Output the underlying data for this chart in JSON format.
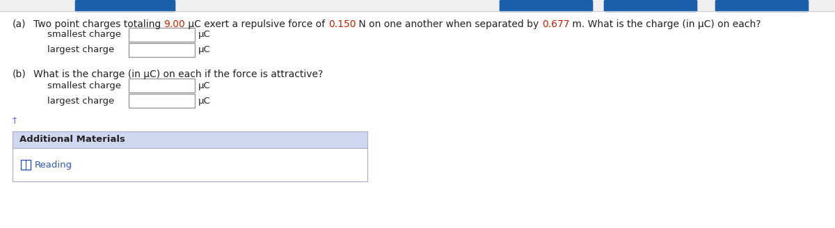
{
  "bg_color": "#ffffff",
  "top_bar_bg": "#f0f0f0",
  "top_btn_color": "#1a5faa",
  "part_a_label": "(a)",
  "part_a_text_parts": [
    {
      "text": "Two point charges totaling ",
      "color": "#222222"
    },
    {
      "text": "9.00",
      "color": "#cc2200"
    },
    {
      "text": " μC exert a repulsive force of ",
      "color": "#222222"
    },
    {
      "text": "0.150",
      "color": "#cc2200"
    },
    {
      "text": " N on one another when separated by ",
      "color": "#222222"
    },
    {
      "text": "0.677",
      "color": "#cc2200"
    },
    {
      "text": " m. What is the charge (in μC) on each?",
      "color": "#222222"
    }
  ],
  "part_b_label": "(b)",
  "part_b_text": "What is the charge (in μC) on each if the force is attractive?",
  "part_b_text_color": "#222222",
  "smallest_charge_label": "smallest charge",
  "largest_charge_label": "largest charge",
  "uc_label": "μC",
  "input_box_color": "#ffffff",
  "input_box_border": "#999999",
  "add_materials_label": "Additional Materials",
  "add_materials_bg": "#d0d8f0",
  "add_materials_border": "#aaaacc",
  "add_materials_body_bg": "#ffffff",
  "reading_label": "Reading",
  "reading_color": "#3355bb",
  "reading_icon_color": "#3355bb",
  "arrow_color": "#6666cc",
  "label_color": "#222222",
  "font_size_main": 10.0,
  "font_size_label": 9.5,
  "font_size_small": 9.0
}
